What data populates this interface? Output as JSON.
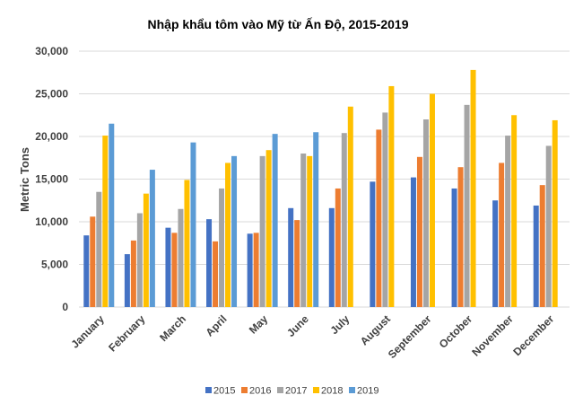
{
  "chart_data": {
    "type": "bar",
    "title": "Nhập khẩu tôm vào Mỹ từ Ấn Độ, 2015-2019",
    "xlabel": "",
    "ylabel": "Metric Tons",
    "ylim": [
      0,
      30000
    ],
    "yticks": [
      0,
      5000,
      10000,
      15000,
      20000,
      25000,
      30000
    ],
    "ytick_labels": [
      "0",
      "5,000",
      "10,000",
      "15,000",
      "20,000",
      "25,000",
      "30,000"
    ],
    "grid": true,
    "legend_position": "bottom",
    "categories": [
      "January",
      "February",
      "March",
      "April",
      "May",
      "June",
      "July",
      "August",
      "September",
      "October",
      "November",
      "December"
    ],
    "series": [
      {
        "name": "2015",
        "color": "#4472C4",
        "values": [
          8400,
          6200,
          9300,
          10300,
          8600,
          11600,
          11600,
          14700,
          15200,
          13900,
          12500,
          11900
        ]
      },
      {
        "name": "2016",
        "color": "#ED7D31",
        "values": [
          10600,
          7800,
          8700,
          7700,
          8700,
          10200,
          13900,
          20800,
          17600,
          16400,
          16900,
          14300
        ]
      },
      {
        "name": "2017",
        "color": "#A5A5A5",
        "values": [
          13500,
          11000,
          11500,
          13900,
          17700,
          18000,
          20400,
          22800,
          22000,
          23700,
          20100,
          18900
        ]
      },
      {
        "name": "2018",
        "color": "#FFC000",
        "values": [
          20100,
          13300,
          14900,
          16900,
          18400,
          17700,
          23500,
          25900,
          25000,
          27800,
          22500,
          21900
        ]
      },
      {
        "name": "2019",
        "color": "#5B9BD5",
        "values": [
          21500,
          16100,
          19300,
          17700,
          20300,
          20500,
          null,
          null,
          null,
          null,
          null,
          null
        ]
      }
    ]
  }
}
